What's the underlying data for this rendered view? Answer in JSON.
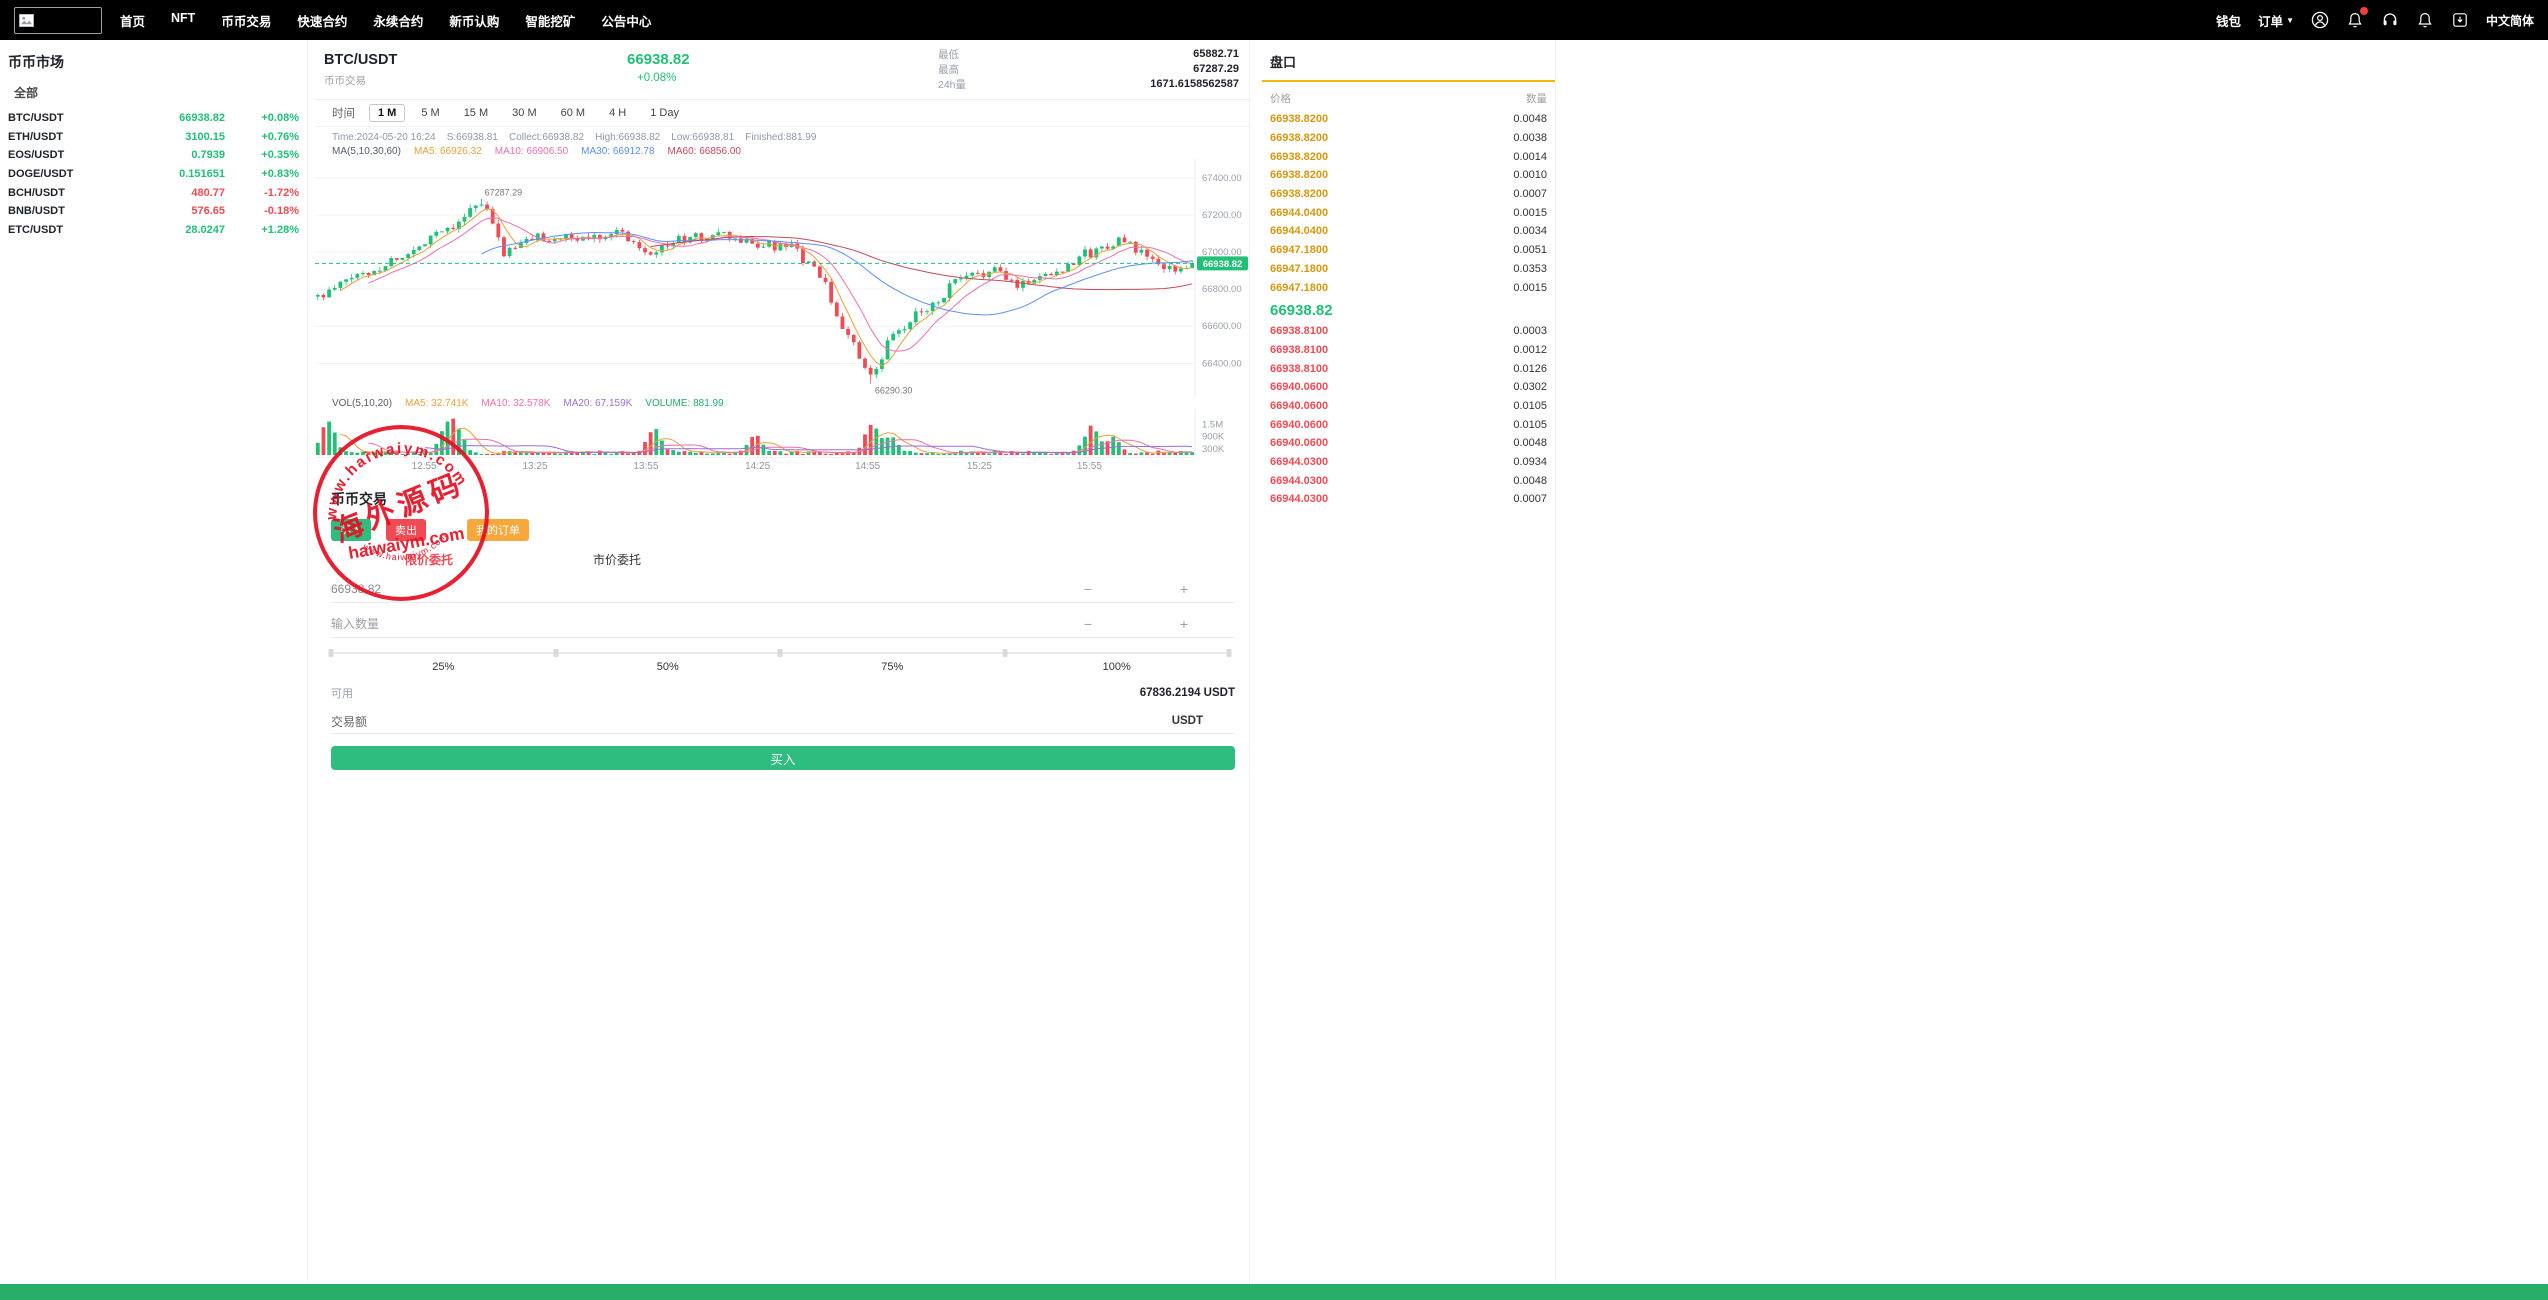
{
  "colors": {
    "green": "#21c077",
    "red": "#f04b55",
    "amber": "#d6980f",
    "accent_yellow": "#f0b90b",
    "stamp_red": "#e60f21",
    "buy_green": "#2ebd7f",
    "footer_green": "#27ad68"
  },
  "navbar": {
    "menu": [
      "首页",
      "NFT",
      "币币交易",
      "快速合约",
      "永续合约",
      "新币认购",
      "智能挖矿",
      "公告中心"
    ],
    "wallet": "钱包",
    "orders": "订单",
    "lang": "中文简体"
  },
  "market": {
    "title": "币币市场",
    "tab": "全部",
    "rows": [
      {
        "pair": "BTC/USDT",
        "price": "66938.82",
        "change": "+0.08%",
        "dir": "up"
      },
      {
        "pair": "ETH/USDT",
        "price": "3100.15",
        "change": "+0.76%",
        "dir": "up"
      },
      {
        "pair": "EOS/USDT",
        "price": "0.7939",
        "change": "+0.35%",
        "dir": "up"
      },
      {
        "pair": "DOGE/USDT",
        "price": "0.151651",
        "change": "+0.83%",
        "dir": "up"
      },
      {
        "pair": "BCH/USDT",
        "price": "480.77",
        "change": "-1.72%",
        "dir": "down"
      },
      {
        "pair": "BNB/USDT",
        "price": "576.65",
        "change": "-0.18%",
        "dir": "down"
      },
      {
        "pair": "ETC/USDT",
        "price": "28.0247",
        "change": "+1.28%",
        "dir": "up"
      }
    ]
  },
  "ticker": {
    "pair": "BTC/USDT",
    "type": "币币交易",
    "price": "66938.82",
    "change": "+0.08%",
    "stats": [
      {
        "label": "最低",
        "value": "65882.71"
      },
      {
        "label": "最高",
        "value": "67287.29"
      },
      {
        "label": "24h量",
        "value": "1671.6158562587"
      }
    ]
  },
  "chart": {
    "time_label": "时间",
    "intervals": [
      "1 M",
      "5 M",
      "15 M",
      "30 M",
      "60 M",
      "4 H",
      "1 Day"
    ],
    "active_interval": "1 M",
    "info": "Time:2024-05-20 16:24    S:66938.81    Collect:66938.82    High:66938.82    Low:66938.81    Finished:881.99",
    "ma_title": "MA(5,10,30,60)",
    "ma_legend": [
      {
        "text": "MA5: 66926.32",
        "color": "#e6a23c"
      },
      {
        "text": "MA10: 66906.50",
        "color": "#ee6fae"
      },
      {
        "text": "MA30: 66912.78",
        "color": "#5b8ff9"
      },
      {
        "text": "MA60: 66856.00",
        "color": "#c9485b"
      }
    ],
    "y_ticks": [
      "67400.00",
      "67200.00",
      "67000.00",
      "66800.00",
      "66600.00",
      "66400.00"
    ],
    "price_tag": "66938.82",
    "price_value": 66938.82,
    "high_note": "67287.29",
    "low_note": "66290.30",
    "vol_title": "VOL(5,10,20)",
    "vol_legend": [
      {
        "text": "MA5: 32.741K",
        "color": "#e6a23c"
      },
      {
        "text": "MA10: 32.578K",
        "color": "#ee6fae"
      },
      {
        "text": "MA20: 67.159K",
        "color": "#9b6dd6"
      },
      {
        "text": "VOLUME: 881.99",
        "color": "#1fae6b"
      }
    ],
    "vol_ticks": [
      "1.5M",
      "900K",
      "300K"
    ],
    "x_ticks": [
      "12:55",
      "13:25",
      "13:55",
      "14:25",
      "14:55",
      "15:25",
      "15:55"
    ],
    "x_tick_pos": [
      0.124,
      0.25,
      0.376,
      0.503,
      0.628,
      0.755,
      0.88
    ],
    "anchors": [
      [
        0,
        66760
      ],
      [
        0.05,
        66880
      ],
      [
        0.1,
        66980
      ],
      [
        0.14,
        67120
      ],
      [
        0.188,
        67250
      ],
      [
        0.215,
        67000
      ],
      [
        0.25,
        67080
      ],
      [
        0.3,
        67070
      ],
      [
        0.34,
        67110
      ],
      [
        0.38,
        67010
      ],
      [
        0.42,
        67070
      ],
      [
        0.46,
        67090
      ],
      [
        0.5,
        67040
      ],
      [
        0.54,
        67020
      ],
      [
        0.57,
        66900
      ],
      [
        0.6,
        66600
      ],
      [
        0.633,
        66320
      ],
      [
        0.66,
        66560
      ],
      [
        0.7,
        66710
      ],
      [
        0.735,
        66850
      ],
      [
        0.77,
        66900
      ],
      [
        0.8,
        66830
      ],
      [
        0.84,
        66890
      ],
      [
        0.88,
        66990
      ],
      [
        0.915,
        67060
      ],
      [
        0.945,
        66990
      ],
      [
        0.97,
        66900
      ],
      [
        1,
        66938.82
      ]
    ],
    "vol_spikes": [
      [
        0.012,
        1.5
      ],
      [
        0.148,
        1.25
      ],
      [
        0.16,
        0.9
      ],
      [
        0.385,
        1.1
      ],
      [
        0.5,
        0.85
      ],
      [
        0.633,
        1.3
      ],
      [
        0.655,
        0.8
      ],
      [
        0.885,
        1.35
      ],
      [
        0.91,
        0.7
      ]
    ]
  },
  "trade": {
    "title": "币币交易",
    "buy_tab": "买入",
    "sell_tab": "卖出",
    "orders_tab": "我的订单",
    "limit_tab": "限价委托",
    "market_tab": "市价委托",
    "price_value": "66938.82",
    "amount_placeholder": "输入数量",
    "percents": [
      "25%",
      "50%",
      "75%",
      "100%"
    ],
    "available_label": "可用",
    "available_value": "67836.2194 USDT",
    "amount_label": "交易额",
    "amount_unit": "USDT",
    "buy_button": "买入"
  },
  "orderbook": {
    "title": "盘口",
    "col_price": "价格",
    "col_amount": "数量",
    "asks": [
      {
        "price": "66938.8200",
        "amount": "0.0048"
      },
      {
        "price": "66938.8200",
        "amount": "0.0038"
      },
      {
        "price": "66938.8200",
        "amount": "0.0014"
      },
      {
        "price": "66938.8200",
        "amount": "0.0010"
      },
      {
        "price": "66938.8200",
        "amount": "0.0007"
      },
      {
        "price": "66944.0400",
        "amount": "0.0015"
      },
      {
        "price": "66944.0400",
        "amount": "0.0034"
      },
      {
        "price": "66947.1800",
        "amount": "0.0051"
      },
      {
        "price": "66947.1800",
        "amount": "0.0353"
      },
      {
        "price": "66947.1800",
        "amount": "0.0015"
      }
    ],
    "last_price": "66938.82",
    "bids": [
      {
        "price": "66938.8100",
        "amount": "0.0003"
      },
      {
        "price": "66938.8100",
        "amount": "0.0012"
      },
      {
        "price": "66938.8100",
        "amount": "0.0126"
      },
      {
        "price": "66940.0600",
        "amount": "0.0302"
      },
      {
        "price": "66940.0600",
        "amount": "0.0105"
      },
      {
        "price": "66940.0600",
        "amount": "0.0105"
      },
      {
        "price": "66940.0600",
        "amount": "0.0048"
      },
      {
        "price": "66944.0300",
        "amount": "0.0934"
      },
      {
        "price": "66944.0300",
        "amount": "0.0048"
      },
      {
        "price": "66944.0300",
        "amount": "0.0007"
      }
    ]
  },
  "watermark": {
    "arc_text": "www.haiwaiym.com",
    "cn_text": "海外源码",
    "main_text": "haiwaiym.com",
    "bottom_text": "www.haiwaiym.com"
  }
}
